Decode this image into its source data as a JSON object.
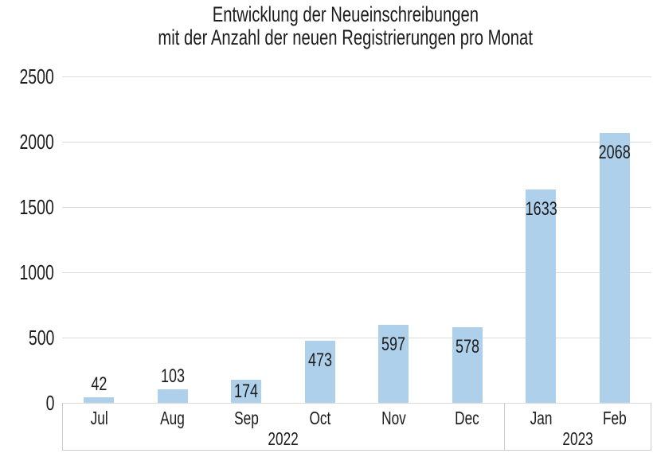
{
  "title": {
    "line1": "Entwicklung der Neueinschreibungen",
    "line2": "mit der Anzahl der neuen Registrierungen pro Monat"
  },
  "chart_data": {
    "type": "bar",
    "title": "Entwicklung der Neueinschreibungen mit der Anzahl der neuen Registrierungen pro Monat",
    "categories": [
      "Jul",
      "Aug",
      "Sep",
      "Oct",
      "Nov",
      "Dec",
      "Jan",
      "Feb"
    ],
    "values": [
      42,
      103,
      174,
      473,
      597,
      578,
      1633,
      2068
    ],
    "bar_labels": [
      "42",
      "103",
      "174",
      "473",
      "597",
      "578",
      "1633",
      "2068"
    ],
    "year_groups": [
      {
        "label": "2022",
        "months": 6
      },
      {
        "label": "2023",
        "months": 2
      }
    ],
    "y_ticks": [
      0,
      500,
      1000,
      1500,
      2000,
      2500
    ],
    "ylim": [
      0,
      2500
    ],
    "xlabel": "",
    "ylabel": "",
    "grid": true,
    "legend": "none",
    "colors": {
      "bar": "#aed0eb",
      "grid": "#dcdcdc",
      "band_border": "#cccccc",
      "text": "#1c1c1c",
      "background": "#ffffff"
    }
  }
}
